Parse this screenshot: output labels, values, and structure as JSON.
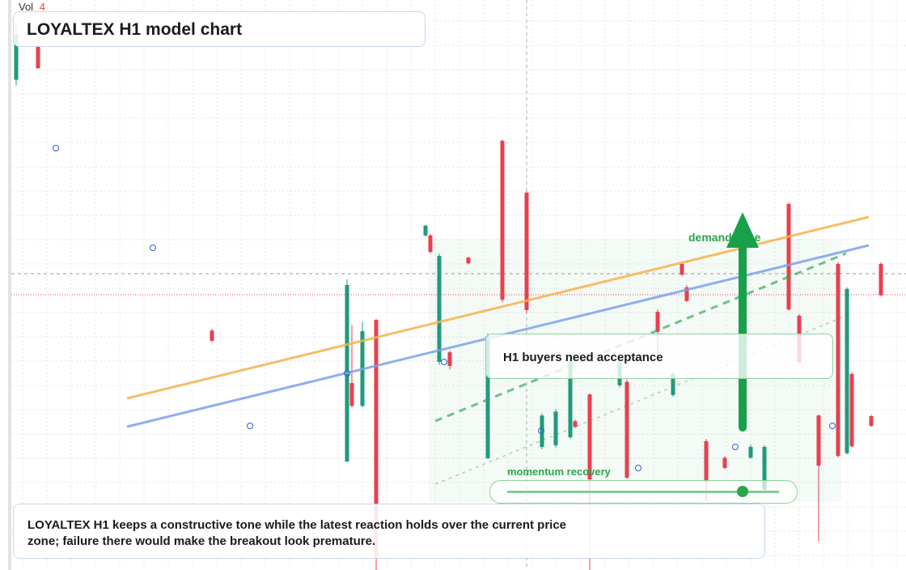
{
  "vol_label": "Vol",
  "vol_value": 4,
  "title": "LOYALTEX H1 model chart",
  "annotations": {
    "zone": "demand zone",
    "callout": "H1 buyers need acceptance",
    "momentum": "momentum recovery"
  },
  "caption": "LOYALTEX H1 keeps a constructive tone while the latest reaction holds over the current price zone; failure there would make the breakout look premature.",
  "chart_data": {
    "type": "candlestick",
    "ylim": [
      0,
      100
    ],
    "up_color": "#1f9a7c",
    "down_color": "#e8404f",
    "candles": [
      {
        "open": 86,
        "high": 96,
        "low": 85,
        "close": 94
      },
      {
        "open": 92,
        "high": 93,
        "low": 88,
        "close": 88
      },
      {
        "open": 42,
        "high": 42.3,
        "low": 40,
        "close": 40.2
      },
      {
        "open": 19,
        "high": 51,
        "low": 19,
        "close": 50
      },
      {
        "open": 32.8,
        "high": 43,
        "low": 28.5,
        "close": 28.8
      },
      {
        "open": 28.8,
        "high": 43.5,
        "low": 28.5,
        "close": 41.9
      },
      {
        "open": 43.9,
        "high": 44,
        "low": 0,
        "close": 2
      },
      {
        "open": 58.7,
        "high": 60.6,
        "low": 58.5,
        "close": 60.4
      },
      {
        "open": 58.7,
        "high": 59,
        "low": 55.5,
        "close": 55.8
      },
      {
        "open": 36.5,
        "high": 55.5,
        "low": 36,
        "close": 55.1
      },
      {
        "open": 38.2,
        "high": 38.5,
        "low": 35.2,
        "close": 35.8
      },
      {
        "open": 54.8,
        "high": 55,
        "low": 53.6,
        "close": 53.8
      },
      {
        "open": 19.6,
        "high": 41.5,
        "low": 19.5,
        "close": 41
      },
      {
        "open": 75.3,
        "high": 75.5,
        "low": 47,
        "close": 47.4
      },
      {
        "open": 66.2,
        "high": 66.5,
        "low": 45,
        "close": 45.6
      },
      {
        "open": 21.6,
        "high": 27.5,
        "low": 21.2,
        "close": 27.1
      },
      {
        "open": 21.9,
        "high": 28.2,
        "low": 21.5,
        "close": 27.8
      },
      {
        "open": 23.3,
        "high": 37,
        "low": 23,
        "close": 36.6
      },
      {
        "open": 26.1,
        "high": 26.4,
        "low": 24.9,
        "close": 25.1
      },
      {
        "open": 30.8,
        "high": 31,
        "low": 0,
        "close": 15.9
      },
      {
        "open": 32.4,
        "high": 36.8,
        "low": 32,
        "close": 36.4
      },
      {
        "open": 33,
        "high": 33.4,
        "low": 16,
        "close": 16.2
      },
      {
        "open": 45.3,
        "high": 45.7,
        "low": 38,
        "close": 41.8
      },
      {
        "open": 30.7,
        "high": 34.8,
        "low": 30.4,
        "close": 34.4
      },
      {
        "open": 53.7,
        "high": 54,
        "low": 51.6,
        "close": 51.8
      },
      {
        "open": 49.6,
        "high": 50,
        "low": 47,
        "close": 47.2
      },
      {
        "open": 22.6,
        "high": 23,
        "low": 12,
        "close": 15.5
      },
      {
        "open": 19.7,
        "high": 20,
        "low": 17.7,
        "close": 17.9
      },
      {
        "open": 19.7,
        "high": 22,
        "low": 19.5,
        "close": 21.6
      },
      {
        "open": 14.1,
        "high": 21.9,
        "low": 14,
        "close": 21.6
      },
      {
        "open": 64.2,
        "high": 64.5,
        "low": 45.5,
        "close": 45.7
      },
      {
        "open": 44.6,
        "high": 44.9,
        "low": 36.3,
        "close": 36.5
      },
      {
        "open": 27.1,
        "high": 27.3,
        "low": 5,
        "close": 18.3
      },
      {
        "open": 53.7,
        "high": 54,
        "low": 19.8,
        "close": 20
      },
      {
        "open": 20.5,
        "high": 49.6,
        "low": 20.3,
        "close": 49.3
      },
      {
        "open": 34.4,
        "high": 34.7,
        "low": 21.5,
        "close": 21.7
      },
      {
        "open": 27,
        "high": 27.2,
        "low": 25.1,
        "close": 25.3
      },
      {
        "open": 53.7,
        "high": 54,
        "low": 48,
        "close": 48.2
      }
    ]
  }
}
